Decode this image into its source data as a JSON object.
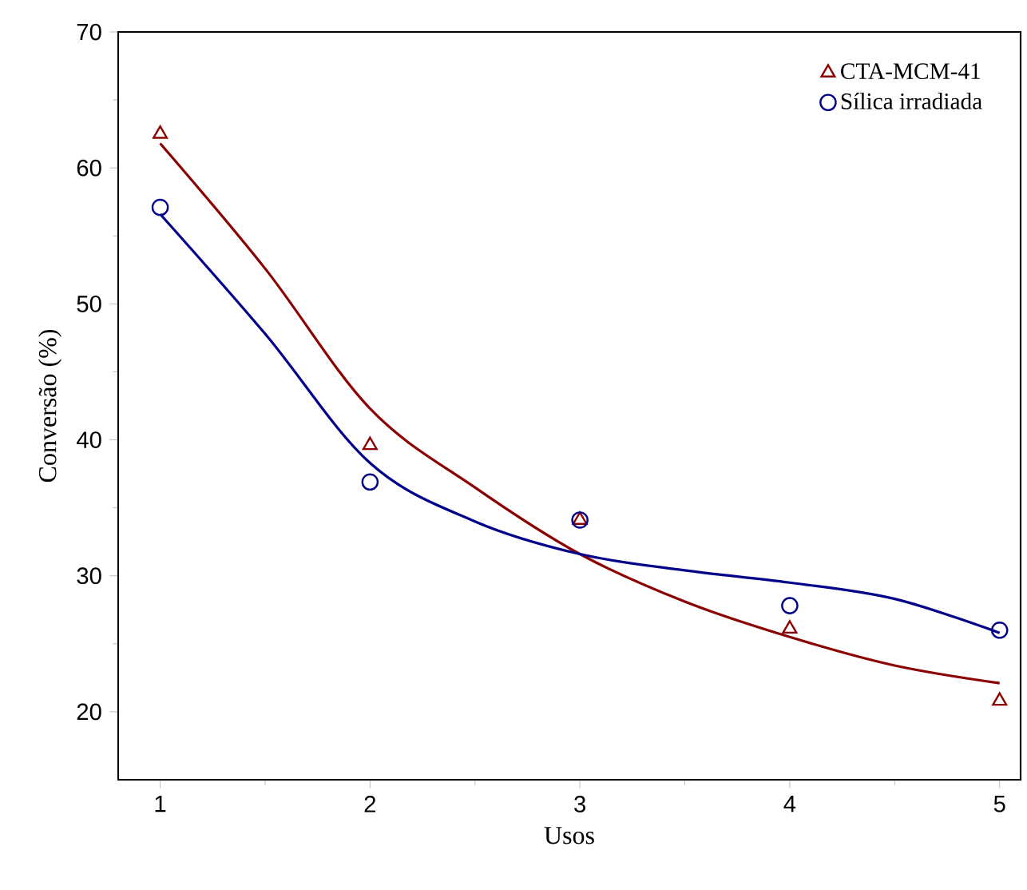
{
  "chart_data": {
    "type": "scatter",
    "xlabel": "Usos",
    "ylabel": "Conversão (%)",
    "xlim": [
      0.8,
      5.1
    ],
    "ylim": [
      15,
      70
    ],
    "xticks": [
      1,
      2,
      3,
      4,
      5
    ],
    "yticks": [
      20,
      30,
      40,
      50,
      60,
      70
    ],
    "grid": false,
    "legend": "top right",
    "series": [
      {
        "name": "CTA-MCM-41",
        "marker": "triangle",
        "color": "#8b0000",
        "x": [
          1,
          2,
          3,
          4,
          5
        ],
        "values": [
          62.5,
          39.6,
          34.1,
          26.1,
          20.8
        ]
      },
      {
        "name": "Sílica irradiada",
        "marker": "circle",
        "color": "#00008b",
        "x": [
          1,
          2,
          3,
          4,
          5
        ],
        "values": [
          57.1,
          36.9,
          34.1,
          27.8,
          26.0
        ]
      },
      {
        "type": "line",
        "marker": "none",
        "color": "#8b0000",
        "x": [
          1,
          1.5,
          2,
          2.5,
          3,
          3.5,
          4,
          4.5,
          5
        ],
        "values": [
          61.8,
          52.6,
          42.3,
          36.5,
          31.6,
          28.1,
          25.5,
          23.4,
          22.1
        ]
      },
      {
        "type": "line",
        "marker": "none",
        "color": "#00008b",
        "x": [
          1,
          1.5,
          2,
          2.5,
          3,
          3.5,
          4,
          4.5,
          5
        ],
        "values": [
          56.6,
          47.8,
          38.3,
          34.0,
          31.6,
          30.4,
          29.5,
          28.3,
          25.8
        ]
      }
    ]
  }
}
